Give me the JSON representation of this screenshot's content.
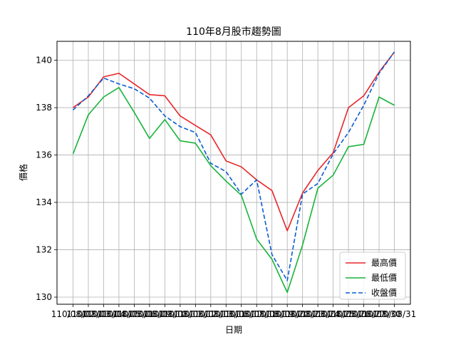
{
  "chart_data": {
    "type": "line",
    "title": "110年8月股市趨勢圖",
    "xlabel": "日期",
    "ylabel": "價格",
    "x": [
      "110/08/02",
      "110/08/03",
      "110/08/04",
      "110/08/05",
      "110/08/06",
      "110/08/09",
      "110/08/10",
      "110/08/11",
      "110/08/12",
      "110/08/13",
      "110/08/16",
      "110/08/17",
      "110/08/18",
      "110/08/19",
      "110/08/20",
      "110/08/23",
      "110/08/24",
      "110/08/25",
      "110/08/26",
      "110/08/27",
      "110/08/30",
      "110/08/31"
    ],
    "x_tick_labels": [
      "110/08/02",
      "110/08/03",
      "110/08/04",
      "110/08/05",
      "110/08/06",
      "110/08/09",
      "110/08/10",
      "110/08/11",
      "110/08/12",
      "110/08/13",
      "110/08/16",
      "110/08/17",
      "110/08/18",
      "110/08/19",
      "110/08/20",
      "110/08/23",
      "110/08/24",
      "110/08/25",
      "110/08/26",
      "110/08/27",
      "110/08/30",
      "110/08/31"
    ],
    "ylim": [
      129.7,
      140.8
    ],
    "yticks": [
      130,
      132,
      134,
      136,
      138,
      140
    ],
    "grid": true,
    "legend_position": "lower-right",
    "series": [
      {
        "name": "最高價",
        "color": "#e8262a",
        "dash": "solid",
        "values": [
          138.0,
          138.45,
          139.3,
          139.45,
          139.0,
          138.55,
          138.5,
          137.65,
          137.25,
          136.85,
          135.75,
          135.5,
          134.95,
          134.5,
          132.8,
          134.4,
          135.35,
          136.1,
          138.0,
          138.5,
          139.5,
          140.35
        ]
      },
      {
        "name": "最低價",
        "color": "#19b43b",
        "dash": "solid",
        "values": [
          136.05,
          137.7,
          138.45,
          138.85,
          137.8,
          136.7,
          137.5,
          136.6,
          136.5,
          135.55,
          134.9,
          134.3,
          132.45,
          131.6,
          130.2,
          132.2,
          134.6,
          135.15,
          136.35,
          136.45,
          138.45,
          138.1
        ]
      },
      {
        "name": "收盤價",
        "color": "#0a5bd3",
        "dash": "dashed",
        "values": [
          137.9,
          138.5,
          139.25,
          139.0,
          138.8,
          138.4,
          137.65,
          137.2,
          136.95,
          135.65,
          135.3,
          134.35,
          134.95,
          131.8,
          130.7,
          134.35,
          134.8,
          136.05,
          136.95,
          138.1,
          139.45,
          140.35
        ]
      }
    ]
  }
}
